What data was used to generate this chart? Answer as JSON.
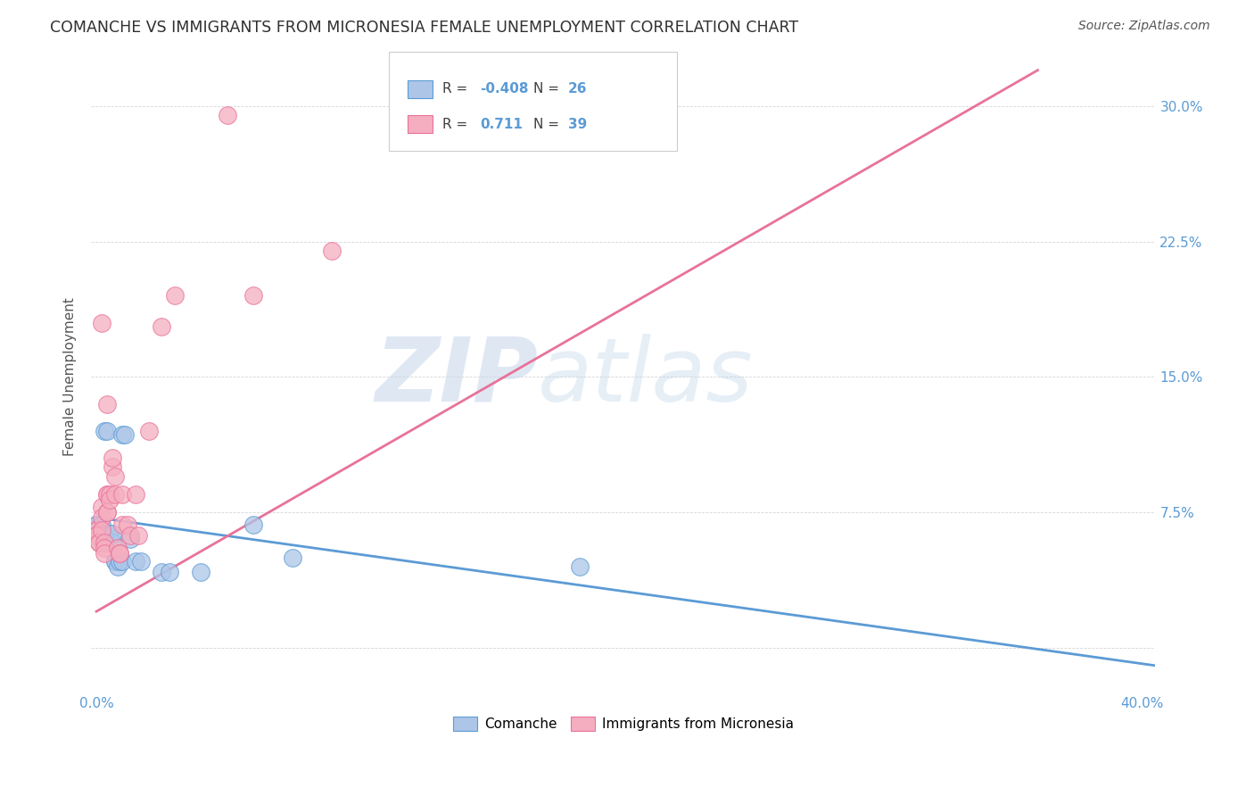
{
  "title": "COMANCHE VS IMMIGRANTS FROM MICRONESIA FEMALE UNEMPLOYMENT CORRELATION CHART",
  "source": "Source: ZipAtlas.com",
  "ylabel": "Female Unemployment",
  "yticks": [
    0.0,
    0.075,
    0.15,
    0.225,
    0.3
  ],
  "ytick_labels": [
    "",
    "7.5%",
    "15.0%",
    "22.5%",
    "30.0%"
  ],
  "xlim": [
    -0.002,
    0.405
  ],
  "ylim": [
    -0.025,
    0.325
  ],
  "watermark_zip": "ZIP",
  "watermark_atlas": "atlas",
  "legend_r1_label": "R = ",
  "legend_r1_val": "-0.408",
  "legend_n1_label": "N = ",
  "legend_n1_val": "26",
  "legend_r2_label": "R =  ",
  "legend_r2_val": "0.711",
  "legend_n2_label": "N = ",
  "legend_n2_val": "39",
  "comanche_color": "#adc6e8",
  "micronesia_color": "#f5aec0",
  "comanche_edge_color": "#5b9bd5",
  "micronesia_edge_color": "#e8729a",
  "comanche_scatter": [
    [
      0.0,
      0.068
    ],
    [
      0.0,
      0.068
    ],
    [
      0.002,
      0.068
    ],
    [
      0.003,
      0.063
    ],
    [
      0.003,
      0.058
    ],
    [
      0.003,
      0.12
    ],
    [
      0.004,
      0.12
    ],
    [
      0.005,
      0.063
    ],
    [
      0.006,
      0.058
    ],
    [
      0.006,
      0.063
    ],
    [
      0.007,
      0.048
    ],
    [
      0.007,
      0.048
    ],
    [
      0.008,
      0.045
    ],
    [
      0.009,
      0.048
    ],
    [
      0.01,
      0.048
    ],
    [
      0.01,
      0.118
    ],
    [
      0.011,
      0.118
    ],
    [
      0.013,
      0.06
    ],
    [
      0.015,
      0.048
    ],
    [
      0.017,
      0.048
    ],
    [
      0.025,
      0.042
    ],
    [
      0.028,
      0.042
    ],
    [
      0.04,
      0.042
    ],
    [
      0.06,
      0.068
    ],
    [
      0.075,
      0.05
    ],
    [
      0.185,
      0.045
    ]
  ],
  "micronesia_scatter": [
    [
      0.0,
      0.065
    ],
    [
      0.0,
      0.065
    ],
    [
      0.0,
      0.062
    ],
    [
      0.0,
      0.062
    ],
    [
      0.001,
      0.058
    ],
    [
      0.001,
      0.058
    ],
    [
      0.002,
      0.078
    ],
    [
      0.002,
      0.072
    ],
    [
      0.002,
      0.065
    ],
    [
      0.003,
      0.058
    ],
    [
      0.003,
      0.055
    ],
    [
      0.003,
      0.052
    ],
    [
      0.004,
      0.085
    ],
    [
      0.004,
      0.085
    ],
    [
      0.004,
      0.075
    ],
    [
      0.004,
      0.075
    ],
    [
      0.005,
      0.085
    ],
    [
      0.005,
      0.082
    ],
    [
      0.006,
      0.1
    ],
    [
      0.006,
      0.105
    ],
    [
      0.007,
      0.095
    ],
    [
      0.007,
      0.085
    ],
    [
      0.008,
      0.055
    ],
    [
      0.009,
      0.052
    ],
    [
      0.009,
      0.052
    ],
    [
      0.01,
      0.085
    ],
    [
      0.01,
      0.068
    ],
    [
      0.012,
      0.068
    ],
    [
      0.013,
      0.062
    ],
    [
      0.015,
      0.085
    ],
    [
      0.016,
      0.062
    ],
    [
      0.002,
      0.18
    ],
    [
      0.004,
      0.135
    ],
    [
      0.02,
      0.12
    ],
    [
      0.025,
      0.178
    ],
    [
      0.03,
      0.195
    ],
    [
      0.05,
      0.295
    ],
    [
      0.06,
      0.195
    ],
    [
      0.09,
      0.22
    ]
  ],
  "comanche_trend_x": [
    0.0,
    0.405
  ],
  "comanche_trend_y": [
    0.072,
    -0.01
  ],
  "micronesia_trend_x": [
    0.0,
    0.36
  ],
  "micronesia_trend_y": [
    0.02,
    0.32
  ],
  "comanche_label": "Comanche",
  "micronesia_label": "Immigrants from Micronesia"
}
